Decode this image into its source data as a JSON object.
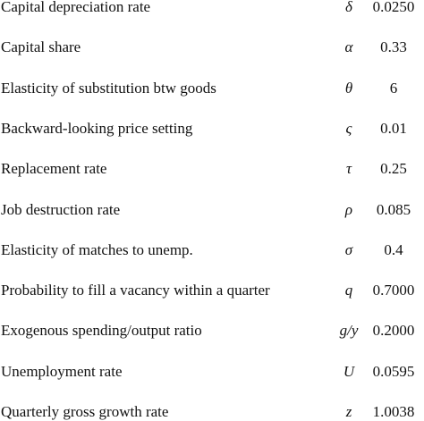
{
  "table": {
    "rows": [
      [
        "Capital depreciation rate",
        "δ",
        "0.0250"
      ],
      [
        "Capital share",
        "α",
        "0.33"
      ],
      [
        "Elasticity of substitution btw goods",
        "θ",
        "6"
      ],
      [
        "Backward-looking price setting",
        "ς",
        "0.01"
      ],
      [
        "Replacement rate",
        "τ",
        "0.25"
      ],
      [
        "Job destruction rate",
        "ρ",
        "0.085"
      ],
      [
        "Elasticity of matches to unemp.",
        "σ",
        "0.4"
      ],
      [
        "Probability to fill a vacancy within a quarter",
        "q",
        "0.7000"
      ],
      [
        "Exogenous spending/output ratio",
        "g/y",
        "0.2000"
      ],
      [
        "Unemployment rate",
        "U",
        "0.0595"
      ],
      [
        "Quarterly gross growth rate",
        "z",
        "1.0038"
      ]
    ]
  }
}
